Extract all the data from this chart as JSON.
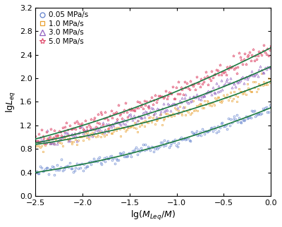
{
  "title": "",
  "xlabel": "lg($M_{Leq}$/$M$)",
  "ylabel": "lg$L_{eq}$",
  "xlim": [
    -2.5,
    0.0
  ],
  "ylim": [
    0.0,
    3.2
  ],
  "xticks": [
    -2.5,
    -2.0,
    -1.5,
    -1.0,
    -0.5,
    0.0
  ],
  "yticks": [
    0.0,
    0.4,
    0.8,
    1.2,
    1.6,
    2.0,
    2.4,
    2.8,
    3.2
  ],
  "series": [
    {
      "label": "0.05 MPa/s",
      "color": "#6080cc",
      "marker": "o",
      "fit_color": "#1a7a40",
      "slope": 0.64,
      "intercept": 1.5,
      "noise_scale": 0.045,
      "markersize": 2.0,
      "markeredgewidth": 0.5
    },
    {
      "label": "1.0 MPa/s",
      "color": "#e8a030",
      "marker": "s",
      "fit_color": "#1a7a40",
      "slope": 0.63,
      "intercept": 1.95,
      "noise_scale": 0.05,
      "markersize": 2.0,
      "markeredgewidth": 0.5
    },
    {
      "label": "3.0 MPa/s",
      "color": "#9060c0",
      "marker": "^",
      "fit_color": "#1a7a40",
      "slope": 0.72,
      "intercept": 2.2,
      "noise_scale": 0.055,
      "markersize": 2.2,
      "markeredgewidth": 0.5
    },
    {
      "label": "5.0 MPa/s",
      "color": "#e05070",
      "marker": "*",
      "fit_color": "#1a7a40",
      "slope": 0.82,
      "intercept": 2.52,
      "noise_scale": 0.07,
      "markersize": 2.8,
      "markeredgewidth": 0.5
    }
  ],
  "n_points": 200,
  "background_color": "#ffffff",
  "legend_fontsize": 7.5,
  "axis_fontsize": 9,
  "tick_fontsize": 8
}
